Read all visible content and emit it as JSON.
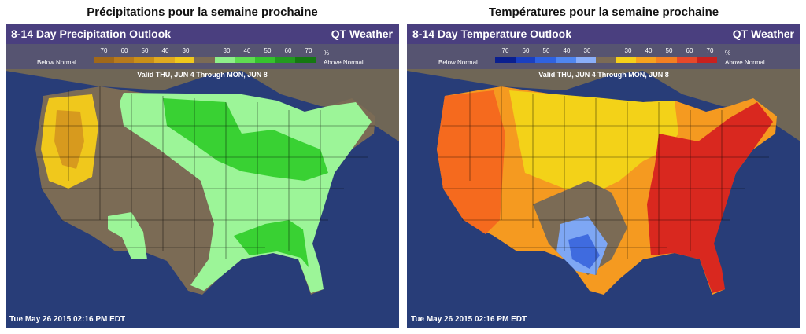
{
  "left": {
    "page_title": "Précipitations pour la semaine prochaine",
    "header_title": "8-14 Day Precipitation Outlook",
    "brand": "QT Weather",
    "legend_low": "Below Normal",
    "legend_high": "Above Normal",
    "legend_pct": "%",
    "ticks": [
      "70",
      "60",
      "50",
      "40",
      "30",
      "",
      "30",
      "40",
      "50",
      "60",
      "70"
    ],
    "swatches": [
      "#a0681a",
      "#b77a1c",
      "#c98f18",
      "#e0aa20",
      "#f0c81c",
      "#7b6b55",
      "#8ef08a",
      "#5fdc52",
      "#36c22e",
      "#239a20",
      "#157812"
    ],
    "valid": "Valid THU, JUN 4 Through MON, JUN 8",
    "timestamp": "Tue May 26 2015 02:16 PM EDT"
  },
  "right": {
    "page_title": "Températures pour la semaine prochaine",
    "header_title": "8-14 Day Temperature Outlook",
    "brand": "QT Weather",
    "legend_low": "Below Normal",
    "legend_high": "Above Normal",
    "legend_pct": "%",
    "ticks": [
      "70",
      "60",
      "50",
      "40",
      "30",
      "",
      "30",
      "40",
      "50",
      "60",
      "70"
    ],
    "swatches": [
      "#0a1f8f",
      "#1a3fc0",
      "#2f62e0",
      "#4f86f0",
      "#8aaef8",
      "#7b6b55",
      "#f5d01a",
      "#f7a21e",
      "#f47f22",
      "#e8482a",
      "#c8201e"
    ],
    "valid": "Valid THU, JUN 4 Through MON, JUN 8",
    "timestamp": "Tue May 26 2015 02:16 PM EDT"
  },
  "colors": {
    "ocean": "#283d78",
    "land": "#7b6b55",
    "canada": "#6f6656",
    "precip_light_green": "#9cf598",
    "precip_green": "#39d133",
    "precip_yellow": "#f0c81c",
    "precip_orange": "#d79a1e",
    "temp_yellow": "#f3d218",
    "temp_orange": "#f59a20",
    "temp_dark_orange": "#f56a1e",
    "temp_red": "#d9281f",
    "temp_light_blue": "#7ea7f4",
    "temp_blue": "#3f6bdf"
  }
}
